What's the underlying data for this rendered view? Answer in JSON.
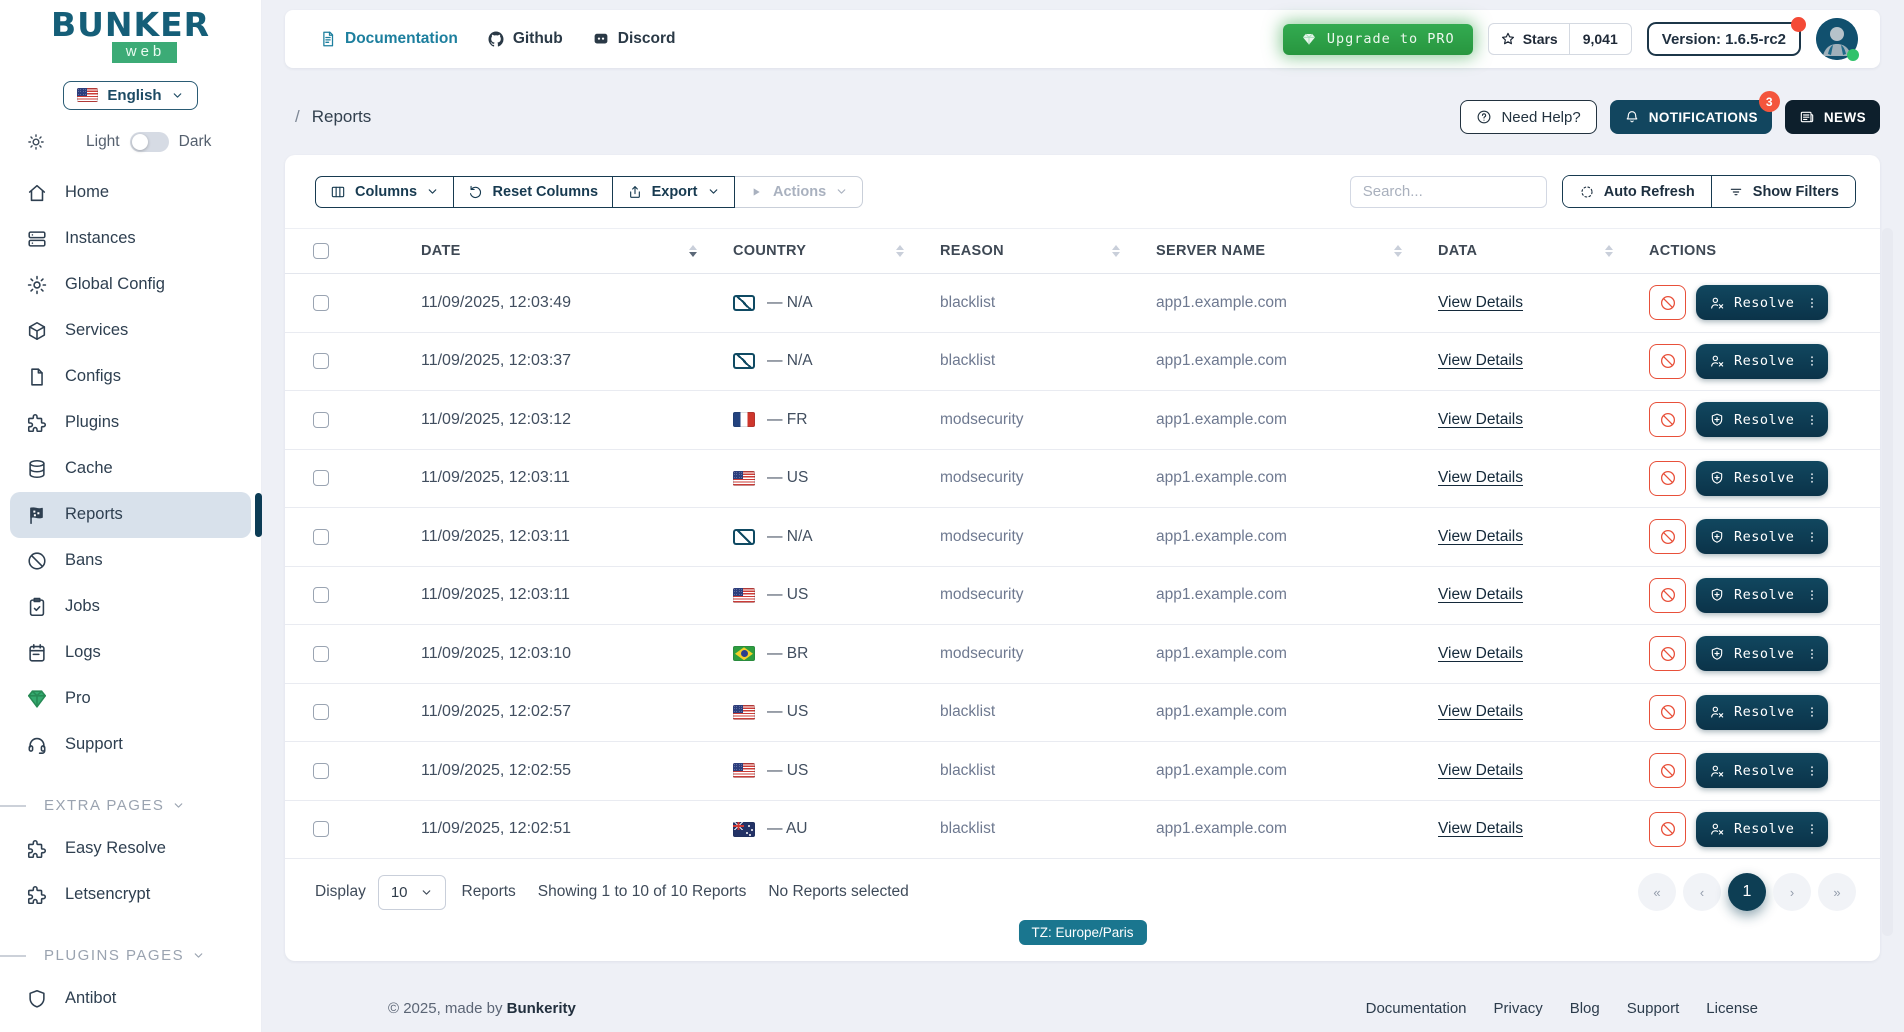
{
  "colors": {
    "accent": "#0d3e54",
    "green": "#3cab76",
    "red": "#e8503a",
    "link_teal": "#1d7f9e",
    "badge_red": "#f4553d"
  },
  "sidebar": {
    "logo_title": "BUNKER",
    "logo_sub": "web",
    "language": {
      "flag": "us-flag-icon",
      "label": "English"
    },
    "theme": {
      "light_label": "Light",
      "dark_label": "Dark"
    },
    "items": [
      {
        "label": "Home",
        "icon": "home-icon",
        "active": false
      },
      {
        "label": "Instances",
        "icon": "server-icon",
        "active": false
      },
      {
        "label": "Global Config",
        "icon": "gear-icon",
        "active": false
      },
      {
        "label": "Services",
        "icon": "cube-icon",
        "active": false
      },
      {
        "label": "Configs",
        "icon": "file-icon",
        "active": false
      },
      {
        "label": "Plugins",
        "icon": "puzzle-icon",
        "active": false
      },
      {
        "label": "Cache",
        "icon": "database-icon",
        "active": false
      },
      {
        "label": "Reports",
        "icon": "flag-checkered-icon",
        "active": true
      },
      {
        "label": "Bans",
        "icon": "ban-icon",
        "active": false
      },
      {
        "label": "Jobs",
        "icon": "clipboard-check-icon",
        "active": false
      },
      {
        "label": "Logs",
        "icon": "calendar-icon",
        "active": false
      },
      {
        "label": "Pro",
        "icon": "gem-icon",
        "active": false
      },
      {
        "label": "Support",
        "icon": "headset-icon",
        "active": false
      }
    ],
    "sections": [
      {
        "label": "EXTRA PAGES",
        "items": [
          {
            "label": "Easy Resolve",
            "icon": "puzzle-icon"
          },
          {
            "label": "Letsencrypt",
            "icon": "puzzle-icon"
          }
        ]
      },
      {
        "label": "PLUGINS PAGES",
        "items": [
          {
            "label": "Antibot",
            "icon": "shield-icon"
          }
        ]
      }
    ]
  },
  "header": {
    "links": [
      {
        "label": "Documentation",
        "icon": "document-icon",
        "accent": true
      },
      {
        "label": "Github",
        "icon": "github-icon",
        "accent": false
      },
      {
        "label": "Discord",
        "icon": "discord-icon",
        "accent": false
      }
    ],
    "upgrade_label": "Upgrade to PRO",
    "stars_label": "Stars",
    "stars_count": "9,041",
    "version": "Version: 1.6.5-rc2"
  },
  "breadcrumb": {
    "separator": "/",
    "page": "Reports"
  },
  "page_actions": {
    "need_help": "Need Help?",
    "notifications": "NOTIFICATIONS",
    "notifications_count": "3",
    "news": "NEWS"
  },
  "toolbar": {
    "columns": "Columns",
    "reset_columns": "Reset Columns",
    "export": "Export",
    "actions": "Actions",
    "search_placeholder": "Search...",
    "auto_refresh": "Auto Refresh",
    "show_filters": "Show Filters"
  },
  "table": {
    "columns": [
      {
        "label": "DATE",
        "sort": "desc"
      },
      {
        "label": "COUNTRY",
        "sort": "none"
      },
      {
        "label": "REASON",
        "sort": "none"
      },
      {
        "label": "SERVER NAME",
        "sort": "none"
      },
      {
        "label": "DATA",
        "sort": "none"
      },
      {
        "label": "ACTIONS",
        "sort": null
      }
    ],
    "rows": [
      {
        "date": "11/09/2025, 12:03:49",
        "country_code": "NA",
        "country_label": "— N/A",
        "reason": "blacklist",
        "server": "app1.example.com",
        "details_label": "View Details",
        "resolve_label": "Resolve",
        "resolve_icon": "user-x-icon"
      },
      {
        "date": "11/09/2025, 12:03:37",
        "country_code": "NA",
        "country_label": "— N/A",
        "reason": "blacklist",
        "server": "app1.example.com",
        "details_label": "View Details",
        "resolve_label": "Resolve",
        "resolve_icon": "user-x-icon"
      },
      {
        "date": "11/09/2025, 12:03:12",
        "country_code": "FR",
        "country_label": "— FR",
        "reason": "modsecurity",
        "server": "app1.example.com",
        "details_label": "View Details",
        "resolve_label": "Resolve",
        "resolve_icon": "shield-plus-icon"
      },
      {
        "date": "11/09/2025, 12:03:11",
        "country_code": "US",
        "country_label": "— US",
        "reason": "modsecurity",
        "server": "app1.example.com",
        "details_label": "View Details",
        "resolve_label": "Resolve",
        "resolve_icon": "shield-plus-icon"
      },
      {
        "date": "11/09/2025, 12:03:11",
        "country_code": "NA",
        "country_label": "— N/A",
        "reason": "modsecurity",
        "server": "app1.example.com",
        "details_label": "View Details",
        "resolve_label": "Resolve",
        "resolve_icon": "shield-plus-icon"
      },
      {
        "date": "11/09/2025, 12:03:11",
        "country_code": "US",
        "country_label": "— US",
        "reason": "modsecurity",
        "server": "app1.example.com",
        "details_label": "View Details",
        "resolve_label": "Resolve",
        "resolve_icon": "shield-plus-icon"
      },
      {
        "date": "11/09/2025, 12:03:10",
        "country_code": "BR",
        "country_label": "— BR",
        "reason": "modsecurity",
        "server": "app1.example.com",
        "details_label": "View Details",
        "resolve_label": "Resolve",
        "resolve_icon": "shield-plus-icon"
      },
      {
        "date": "11/09/2025, 12:02:57",
        "country_code": "US",
        "country_label": "— US",
        "reason": "blacklist",
        "server": "app1.example.com",
        "details_label": "View Details",
        "resolve_label": "Resolve",
        "resolve_icon": "user-x-icon"
      },
      {
        "date": "11/09/2025, 12:02:55",
        "country_code": "US",
        "country_label": "— US",
        "reason": "blacklist",
        "server": "app1.example.com",
        "details_label": "View Details",
        "resolve_label": "Resolve",
        "resolve_icon": "user-x-icon"
      },
      {
        "date": "11/09/2025, 12:02:51",
        "country_code": "AU",
        "country_label": "— AU",
        "reason": "blacklist",
        "server": "app1.example.com",
        "details_label": "View Details",
        "resolve_label": "Resolve",
        "resolve_icon": "user-x-icon"
      }
    ]
  },
  "table_footer": {
    "display_label": "Display",
    "per_page": "10",
    "unit_label": "Reports",
    "showing": "Showing 1 to 10 of 10 Reports",
    "selected": "No Reports selected",
    "timezone": "TZ: Europe/Paris",
    "pagination": [
      {
        "label": "«",
        "active": false
      },
      {
        "label": "‹",
        "active": false
      },
      {
        "label": "1",
        "active": true
      },
      {
        "label": "›",
        "active": false
      },
      {
        "label": "»",
        "active": false
      }
    ]
  },
  "page_footer": {
    "copyright": "© 2025, made by",
    "brand": "Bunkerity",
    "links": [
      "Documentation",
      "Privacy",
      "Blog",
      "Support",
      "License"
    ]
  }
}
